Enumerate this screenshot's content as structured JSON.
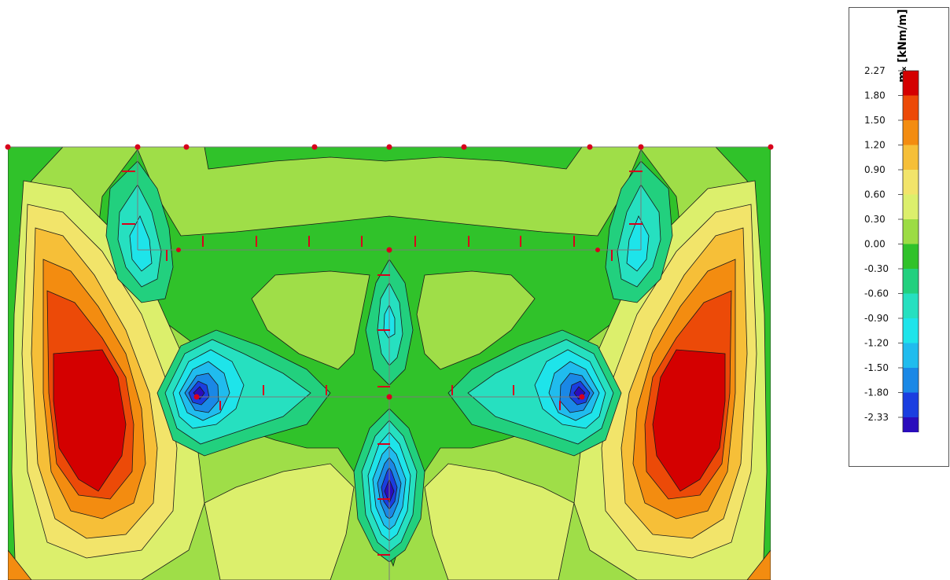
{
  "legend": {
    "title": "mₓ [kNm/m]",
    "labels": [
      "2.27",
      "1.80",
      "1.50",
      "1.20",
      "0.90",
      "0.60",
      "0.30",
      "0.00",
      "-0.30",
      "-0.60",
      "-0.90",
      "-1.20",
      "-1.50",
      "-1.80",
      "-2.33"
    ],
    "colors": [
      "#d40000",
      "#ec4a08",
      "#f38c10",
      "#f6bf38",
      "#f2e46a",
      "#dcef6c",
      "#9cdc44",
      "#30c22a",
      "#22d07e",
      "#26e0c0",
      "#1ee4ea",
      "#20bcee",
      "#1a88e6",
      "#1a3ee0",
      "#2a0cbc"
    ]
  },
  "colors": {
    "background_fill": "#9fde48",
    "node_marker": "#d8001c",
    "outline": "#1a1a1a",
    "member_line": "#7a7a7a"
  }
}
